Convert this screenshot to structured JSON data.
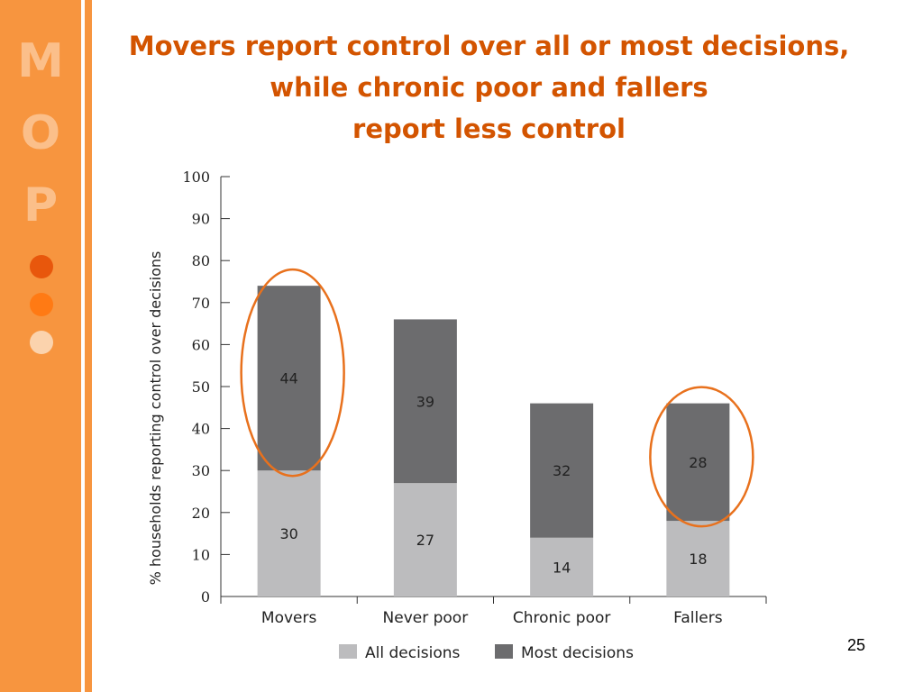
{
  "slide": {
    "title_lines": [
      "Movers report control over all or most decisions,",
      "while chronic poor and fallers",
      "report less control"
    ],
    "page_number": "25",
    "logo": {
      "letters": [
        "M",
        "O",
        "P"
      ]
    }
  },
  "colors": {
    "sidebar": "#f7953f",
    "title": "#d35400",
    "all_decisions": "#bcbcbe",
    "most_decisions": "#6c6c6e",
    "highlight": "#e8711d",
    "dot1": "#e8570c",
    "dot2": "#ff7a14",
    "dot3": "#fbd3ad"
  },
  "chart_data": {
    "type": "bar",
    "stacked": true,
    "categories": [
      "Movers",
      "Never poor",
      "Chronic poor",
      "Fallers"
    ],
    "series": [
      {
        "name": "All decisions",
        "values": [
          30,
          27,
          14,
          18
        ],
        "labels": [
          "30",
          "27",
          "14",
          "18"
        ]
      },
      {
        "name": "Most decisions",
        "values": [
          44,
          39,
          32,
          28
        ],
        "labels": [
          "44",
          "39",
          "32",
          "28"
        ]
      }
    ],
    "ylabel": "% households reporting control over decisions",
    "ylim": [
      0,
      100
    ],
    "yticks": [
      "0",
      "10",
      "20",
      "30",
      "40",
      "50",
      "60",
      "70",
      "80",
      "90",
      "100"
    ],
    "grid": false,
    "legend": "bottom",
    "highlighted_categories": [
      "Movers",
      "Fallers"
    ]
  }
}
